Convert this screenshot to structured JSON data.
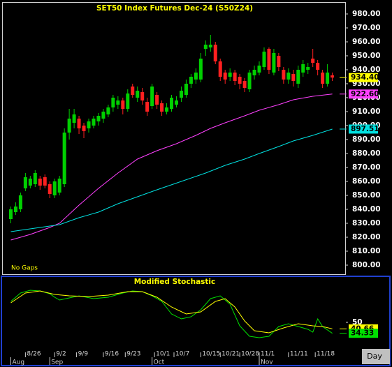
{
  "chart_data": [
    {
      "type": "candlestick",
      "title": "SET50 Index Futures Dec-24 (S50Z24)",
      "annotation": "No Gaps",
      "x": [
        0,
        1,
        2,
        3,
        4,
        5,
        6,
        7,
        8,
        9,
        10,
        11,
        12,
        13,
        14,
        15,
        16,
        17,
        18,
        19,
        20,
        21,
        22,
        23,
        24,
        25,
        26,
        27,
        28,
        29,
        30,
        31,
        32,
        33,
        34,
        35,
        36,
        37,
        38,
        39,
        40,
        41,
        42,
        43,
        44,
        45,
        46,
        47,
        48,
        49,
        50,
        51,
        52,
        53,
        54,
        55,
        56,
        57,
        58,
        59,
        60,
        61,
        62,
        63,
        64,
        65,
        66
      ],
      "open": [
        833,
        838,
        840,
        855,
        857,
        858,
        862,
        863,
        858,
        850,
        852,
        858,
        895,
        902,
        905,
        900,
        898,
        900,
        903,
        905,
        908,
        913,
        915,
        918,
        912,
        928,
        920,
        924,
        917,
        914,
        922,
        916,
        910,
        912,
        915,
        920,
        922,
        930,
        933,
        933,
        955,
        956,
        958,
        946,
        938,
        935,
        938,
        935,
        932,
        926,
        936,
        938,
        942,
        955,
        938,
        950,
        940,
        933,
        937,
        930,
        938,
        940,
        948,
        945,
        938,
        930,
        936
      ],
      "high": [
        842,
        845,
        852,
        866,
        864,
        868,
        864,
        865,
        860,
        862,
        864,
        898,
        912,
        912,
        907,
        902,
        905,
        907,
        909,
        912,
        915,
        922,
        921,
        920,
        926,
        930,
        928,
        927,
        920,
        930,
        924,
        918,
        916,
        922,
        921,
        928,
        933,
        937,
        941,
        952,
        961,
        965,
        960,
        948,
        940,
        941,
        940,
        937,
        934,
        940,
        943,
        946,
        956,
        956,
        955,
        952,
        942,
        941,
        940,
        943,
        947,
        945,
        955,
        947,
        940,
        944,
        938
      ],
      "low": [
        830,
        836,
        838,
        853,
        855,
        856,
        854,
        855,
        848,
        848,
        850,
        856,
        890,
        898,
        894,
        891,
        895,
        898,
        900,
        902,
        906,
        910,
        912,
        908,
        910,
        920,
        917,
        915,
        907,
        912,
        912,
        907,
        908,
        910,
        913,
        917,
        920,
        927,
        930,
        931,
        950,
        953,
        944,
        932,
        930,
        932,
        929,
        926,
        924,
        924,
        933,
        936,
        940,
        937,
        936,
        939,
        930,
        930,
        928,
        927,
        935,
        937,
        942,
        936,
        927,
        928,
        932
      ],
      "close": [
        840,
        842,
        850,
        863,
        862,
        866,
        857,
        857,
        851,
        860,
        862,
        895,
        905,
        908,
        898,
        896,
        903,
        905,
        907,
        910,
        913,
        920,
        918,
        912,
        923,
        922,
        925,
        918,
        910,
        928,
        915,
        910,
        913,
        920,
        918,
        925,
        930,
        935,
        938,
        948,
        958,
        958,
        946,
        935,
        933,
        938,
        932,
        930,
        927,
        938,
        940,
        943,
        953,
        940,
        952,
        942,
        933,
        938,
        932,
        940,
        944,
        942,
        945,
        940,
        930,
        938,
        934.4
      ],
      "up_color": "#00d000",
      "down_color": "#ff2020",
      "overlays": [
        {
          "color": "#ff40ff",
          "x": [
            0,
            4,
            8,
            10,
            14,
            18,
            22,
            26,
            30,
            34,
            38,
            41,
            44,
            48,
            51,
            55,
            58,
            62,
            66
          ],
          "values": [
            818,
            822,
            827,
            830,
            843,
            855,
            866,
            876,
            882,
            887,
            893,
            898,
            902,
            907,
            911,
            915,
            918.5,
            921,
            922.6
          ]
        },
        {
          "color": "#00e0e0",
          "x": [
            0,
            4,
            8,
            10,
            14,
            18,
            22,
            26,
            30,
            35,
            40,
            44,
            48,
            51,
            55,
            58,
            62,
            66
          ],
          "values": [
            824,
            826,
            828,
            829,
            834,
            838,
            844,
            849,
            854,
            860,
            866,
            871.5,
            876,
            880,
            885,
            889,
            893,
            897.51
          ]
        }
      ],
      "xlim": [
        -1.5,
        68.5
      ],
      "ylim": [
        794,
        988
      ],
      "yticks": [
        {
          "value": 800,
          "label": "800.00"
        },
        {
          "value": 810,
          "label": "810.00"
        },
        {
          "value": 820,
          "label": "820.00"
        },
        {
          "value": 830,
          "label": "830.00"
        },
        {
          "value": 840,
          "label": "840.00"
        },
        {
          "value": 850,
          "label": "850.00"
        },
        {
          "value": 860,
          "label": "860.00"
        },
        {
          "value": 870,
          "label": "870.00"
        },
        {
          "value": 880,
          "label": "880.00"
        },
        {
          "value": 890,
          "label": "890.00"
        },
        {
          "value": 900,
          "label": "900.00"
        },
        {
          "value": 910,
          "label": "910.00"
        },
        {
          "value": 920,
          "label": "920.00"
        },
        {
          "value": 930,
          "label": "930.00"
        },
        {
          "value": 940,
          "label": "940.00"
        },
        {
          "value": 950,
          "label": "950.00"
        },
        {
          "value": 960,
          "label": "960.00"
        },
        {
          "value": 970,
          "label": "970.00"
        },
        {
          "value": 980,
          "label": "980.00"
        }
      ],
      "markers": [
        {
          "value": 934.4,
          "label": "934.40",
          "color": "#ffff00"
        },
        {
          "value": 922.6,
          "label": "922.60",
          "color": "#ff40ff"
        },
        {
          "value": 897.51,
          "label": "897.51",
          "color": "#00e0e0"
        }
      ]
    },
    {
      "type": "line",
      "title": "Modified Stochastic",
      "series": [
        {
          "color": "#00e000",
          "x": [
            0,
            2,
            4,
            6,
            8,
            9,
            10,
            12,
            14,
            17,
            20,
            23,
            25,
            27,
            29,
            31,
            33,
            35,
            37,
            39,
            41,
            43,
            45,
            47,
            49,
            51,
            53,
            55,
            57,
            59,
            61,
            62,
            63,
            64,
            66
          ],
          "values": [
            80,
            92,
            96,
            95,
            91,
            86,
            82,
            85,
            88,
            84,
            86,
            92,
            95,
            94,
            88,
            80,
            62,
            55,
            58,
            68,
            84,
            88,
            76,
            45,
            30,
            28,
            30,
            44,
            48,
            44,
            40,
            36,
            55,
            44,
            34.33
          ]
        },
        {
          "color": "#ffff00",
          "x": [
            0,
            3,
            6,
            9,
            12,
            16,
            20,
            24,
            27,
            30,
            33,
            36,
            39,
            42,
            44,
            46,
            48,
            50,
            53,
            56,
            59,
            62,
            64,
            66
          ],
          "values": [
            78,
            92,
            95,
            90,
            88,
            87,
            89,
            94,
            94,
            86,
            72,
            62,
            65,
            80,
            84,
            72,
            52,
            38,
            35,
            42,
            48,
            45,
            44,
            40.66
          ]
        }
      ],
      "xlim": [
        -1.5,
        68.5
      ],
      "ylim": [
        2,
        114
      ],
      "yticks": [
        50
      ],
      "xticks": [
        {
          "value": 3,
          "label": "8/26"
        },
        {
          "value": 9,
          "label": "9/2"
        },
        {
          "value": 13.5,
          "label": "9/9"
        },
        {
          "value": 19,
          "label": "9/16"
        },
        {
          "value": 23.5,
          "label": "9/23"
        },
        {
          "value": 29.5,
          "label": "10/1"
        },
        {
          "value": 33.5,
          "label": "10/7"
        },
        {
          "value": 39,
          "label": "10/15"
        },
        {
          "value": 43,
          "label": "10/21"
        },
        {
          "value": 47,
          "label": "10/28"
        },
        {
          "value": 51,
          "label": "11/1"
        },
        {
          "value": 57,
          "label": "11/11"
        },
        {
          "value": 62.5,
          "label": "11/18"
        }
      ],
      "month_ticks": [
        {
          "value": 0,
          "label": "Aug"
        },
        {
          "value": 8,
          "label": "Sep"
        },
        {
          "value": 29,
          "label": "Oct"
        },
        {
          "value": 51,
          "label": "Nov"
        }
      ],
      "markers": [
        {
          "value": 40.66,
          "label": "40.66",
          "color": "#ffff00"
        },
        {
          "value": 34.33,
          "label": "34.33",
          "color": "#00e000"
        }
      ],
      "period": "Day"
    }
  ]
}
